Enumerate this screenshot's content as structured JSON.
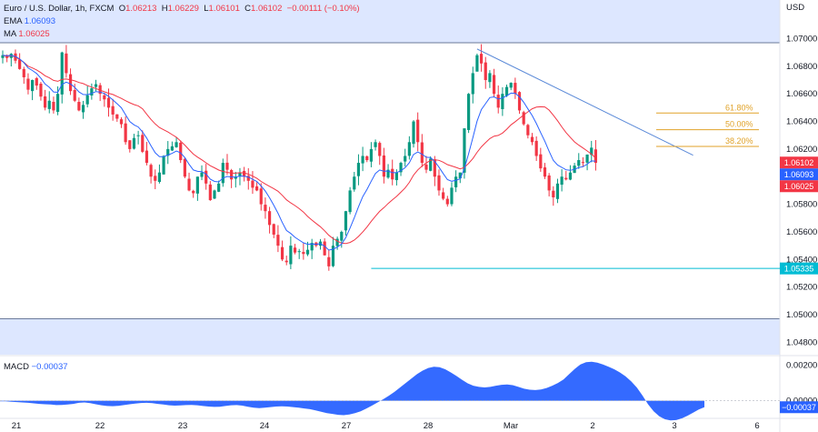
{
  "header": {
    "symbol": "Euro / U.S. Dollar, 1h, FXCM",
    "o_label": "O",
    "o_value": "1.06213",
    "h_label": "H",
    "h_value": "1.06229",
    "l_label": "L",
    "l_value": "1.06101",
    "c_label": "C",
    "c_value": "1.06102",
    "change": "−0.00111 (−0.10%)",
    "ema_label": "EMA",
    "ema_value": "1.06093",
    "ma_label": "MA",
    "ma_value": "1.06025",
    "currency": "USD"
  },
  "macd": {
    "label": "MACD",
    "value": "−0.00037",
    "axis_ticks": [
      "0.00200",
      "0.00000"
    ],
    "current_badge": "−0.00037"
  },
  "colors": {
    "up": "#089981",
    "down": "#f23645",
    "ema": "#2962ff",
    "ma": "#f23645",
    "fib": "#e0a228",
    "support": "#00bcd4",
    "trendline": "#5b8ad8",
    "band": "#dde7ff",
    "macd_fill": "#2962ff"
  },
  "chart_data": {
    "type": "candlestick",
    "y_axis": {
      "ticks": [
        "1.07000",
        "1.06800",
        "1.06600",
        "1.06400",
        "1.06200",
        "1.06000",
        "1.05800",
        "1.05600",
        "1.05400",
        "1.05200",
        "1.05000",
        "1.04800"
      ],
      "ylim": [
        1.0471,
        1.0728
      ]
    },
    "x_axis": {
      "labels": [
        "21",
        "22",
        "23",
        "24",
        "27",
        "28",
        "Mar",
        "2",
        "3",
        "6"
      ]
    },
    "price_badges": [
      {
        "text": "1.06102",
        "value": 1.06102,
        "color": "#f23645"
      },
      {
        "text": "1.06093",
        "value": 1.06093,
        "color": "#2962ff"
      },
      {
        "text": "1.06025",
        "value": 1.06025,
        "color": "#f23645"
      },
      {
        "text": "1.05335",
        "value": 1.05335,
        "color": "#00bcd4"
      }
    ],
    "band_lines": [
      1.0697,
      1.0497
    ],
    "support_level": 1.05335,
    "fib_levels": [
      {
        "label": "61.80%",
        "value": 1.06461
      },
      {
        "label": "50.00%",
        "value": 1.0634
      },
      {
        "label": "38.20%",
        "value": 1.06219
      }
    ],
    "trendline": {
      "from": {
        "x": 112,
        "y": 1.06925
      },
      "to": {
        "x": 163,
        "y": 1.06155
      }
    },
    "closes": [
      1.0688,
      1.0686,
      1.0689,
      1.0684,
      1.0678,
      1.0672,
      1.0663,
      1.067,
      1.0666,
      1.0658,
      1.065,
      1.0655,
      1.0648,
      1.066,
      1.069,
      1.0675,
      1.0662,
      1.0655,
      1.0648,
      1.0652,
      1.0659,
      1.0664,
      1.0667,
      1.066,
      1.0656,
      1.065,
      1.0645,
      1.0642,
      1.0638,
      1.0625,
      1.062,
      1.0628,
      1.063,
      1.0618,
      1.061,
      1.06,
      1.0597,
      1.0603,
      1.0615,
      1.062,
      1.0622,
      1.0625,
      1.0612,
      1.06,
      1.059,
      1.0588,
      1.06,
      1.0603,
      1.0595,
      1.0583,
      1.059,
      1.0595,
      1.061,
      1.0605,
      1.0598,
      1.06,
      1.0603,
      1.06,
      1.0597,
      1.0592,
      1.059,
      1.058,
      1.0575,
      1.0565,
      1.0558,
      1.055,
      1.054,
      1.0538,
      1.055,
      1.0545,
      1.0546,
      1.0544,
      1.0547,
      1.0552,
      1.055,
      1.0553,
      1.0543,
      1.0535,
      1.055,
      1.0555,
      1.056,
      1.0575,
      1.059,
      1.06,
      1.061,
      1.0615,
      1.0612,
      1.062,
      1.0625,
      1.0615,
      1.06,
      1.0605,
      1.0598,
      1.0603,
      1.061,
      1.0615,
      1.0625,
      1.064,
      1.0625,
      1.061,
      1.0605,
      1.0613,
      1.06,
      1.059,
      1.0584,
      1.058,
      1.0592,
      1.06,
      1.0603,
      1.0635,
      1.066,
      1.0675,
      1.0688,
      1.0682,
      1.067,
      1.0675,
      1.066,
      1.065,
      1.066,
      1.0665,
      1.0668,
      1.066,
      1.0648,
      1.0638,
      1.063,
      1.0625,
      1.0615,
      1.0606,
      1.06,
      1.059,
      1.0585,
      1.0595,
      1.06,
      1.0598,
      1.0603,
      1.0608,
      1.0612,
      1.061,
      1.0616,
      1.0621,
      1.061
    ],
    "ema_value": 1.06093,
    "ma_value": 1.06025,
    "macd_values": [
      -3e-05,
      -4e-05,
      -6e-05,
      -8e-05,
      -0.0001,
      -0.00012,
      -0.00015,
      -0.00018,
      -0.0002,
      -0.00022,
      -0.00025,
      -0.00024,
      -0.00022,
      -0.00018,
      -0.00012,
      -0.0001,
      -0.00014,
      -0.0002,
      -0.00026,
      -0.0003,
      -0.00031,
      -0.00029,
      -0.00025,
      -0.0002,
      -0.00016,
      -0.00013,
      -0.00012,
      -0.00014,
      -0.00018,
      -0.00022,
      -0.00026,
      -0.00028,
      -0.00027,
      -0.00025,
      -0.00024,
      -0.00026,
      -0.0003,
      -0.00033,
      -0.00035,
      -0.00034,
      -0.0003,
      -0.00026,
      -0.00025,
      -0.00028,
      -0.00034,
      -0.0004,
      -0.00042,
      -0.0004,
      -0.00036,
      -0.00033,
      -0.00032,
      -0.00033,
      -0.00036,
      -0.0004,
      -0.00044,
      -0.00048,
      -0.00055,
      -0.00063,
      -0.0007,
      -0.00075,
      -0.0008,
      -0.00082,
      -0.00078,
      -0.0007,
      -0.0006,
      -0.00045,
      -0.00028,
      -0.0001,
      8e-05,
      0.00028,
      0.0005,
      0.00075,
      0.001,
      0.00125,
      0.0015,
      0.0017,
      0.00185,
      0.00192,
      0.0019,
      0.00178,
      0.0016,
      0.0014,
      0.00118,
      0.00098,
      0.00085,
      0.00078,
      0.00075,
      0.00078,
      0.00085,
      0.0009,
      0.00092,
      0.00088,
      0.00078,
      0.00068,
      0.00062,
      0.0006,
      0.00063,
      0.00072,
      0.00085,
      0.001,
      0.0012,
      0.0015,
      0.0018,
      0.00205,
      0.00218,
      0.0022,
      0.00215,
      0.00205,
      0.00192,
      0.00178,
      0.0016,
      0.00138,
      0.0011,
      0.00075,
      0.0003,
      -0.0002,
      -0.0006,
      -0.00088,
      -0.00105,
      -0.00112,
      -0.0011,
      -0.001,
      -0.00085,
      -0.00068,
      -0.0005,
      -0.00037
    ]
  }
}
